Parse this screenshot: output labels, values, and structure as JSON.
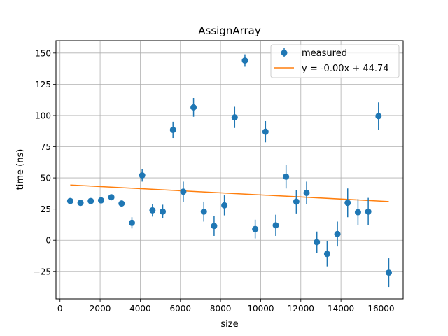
{
  "chart_data": {
    "type": "scatter",
    "title": "AssignArray",
    "xlabel": "size",
    "ylabel": "time (ns)",
    "xlim": [
      -200,
      17100
    ],
    "ylim": [
      -47,
      160
    ],
    "xticks": [
      0,
      2000,
      4000,
      6000,
      8000,
      10000,
      12000,
      14000,
      16000
    ],
    "yticks": [
      -25,
      0,
      25,
      50,
      75,
      100,
      125,
      150
    ],
    "grid": true,
    "legend_position": "upper-right",
    "colors": {
      "measured": "#1f77b4",
      "fit": "#ff7f0e",
      "grid": "#b0b0b0"
    },
    "series": [
      {
        "name": "measured",
        "kind": "errorbar",
        "x": [
          512,
          1024,
          1536,
          2048,
          2560,
          3072,
          3584,
          4096,
          4608,
          5120,
          5632,
          6144,
          6656,
          7168,
          7680,
          8192,
          8704,
          9216,
          9728,
          10240,
          10752,
          11264,
          11776,
          12288,
          12800,
          13312,
          13824,
          14336,
          14848,
          15360,
          15872,
          16384
        ],
        "y": [
          31.5,
          30,
          31.5,
          32,
          34.5,
          29.5,
          14,
          52,
          24,
          23,
          88.5,
          39,
          106.5,
          23,
          11.5,
          28,
          98.5,
          144,
          9,
          87,
          12,
          51,
          31,
          38,
          -1.5,
          -11,
          5,
          30,
          22.5,
          23,
          99.5,
          -26
        ],
        "yerr": [
          2,
          1.5,
          1.5,
          1.5,
          2,
          2,
          4.5,
          5,
          5,
          5.5,
          6.5,
          8,
          7.5,
          8,
          8,
          8,
          8.5,
          5,
          7.5,
          8.5,
          8.5,
          9.5,
          9.5,
          9,
          8.5,
          10,
          10,
          11.5,
          10.5,
          11,
          11,
          11.5
        ]
      },
      {
        "name": "y = -0.00x + 44.74",
        "kind": "line",
        "slope": -0.000835,
        "intercept": 44.74,
        "x_range": [
          512,
          16384
        ]
      }
    ]
  }
}
